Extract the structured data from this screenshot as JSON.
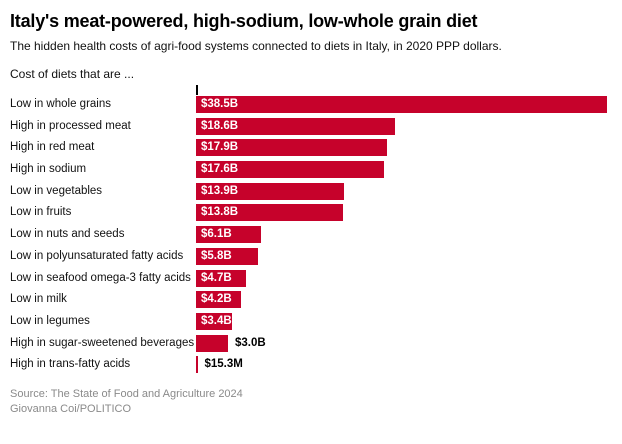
{
  "header": {
    "title": "Italy's meat-powered, high-sodium, low-whole grain diet",
    "subtitle": "The hidden health costs of agri-food systems connected to diets in Italy, in 2020 PPP dollars.",
    "prompt": "Cost of diets that are ..."
  },
  "colors": {
    "bar_red": "#c6022b",
    "value_inside_white": "#ffffff",
    "value_outside_black": "#000000",
    "axis_tick_black": "#000000",
    "source_gray": "#8a8a8a"
  },
  "chart_data": {
    "type": "bar",
    "orientation": "horizontal",
    "title": "Italy's meat-powered, high-sodium, low-whole grain diet",
    "subtitle": "The hidden health costs of agri-food systems connected to diets in Italy, in 2020 PPP dollars.",
    "unit": "2020 PPP dollars",
    "xlim_billions": [
      0,
      38.5
    ],
    "grid": false,
    "legend": false,
    "categories": [
      "Low in whole grains",
      "High in processed meat",
      "High in red meat",
      "High in sodium",
      "Low in vegetables",
      "Low in fruits",
      "Low in nuts and seeds",
      "Low in polyunsaturated fatty acids",
      "Low in seafood omega-3 fatty acids",
      "Low in milk",
      "Low in legumes",
      "High in sugar-sweetened beverages",
      "High in trans-fatty acids"
    ],
    "values_billions": [
      38.5,
      18.6,
      17.9,
      17.6,
      13.9,
      13.8,
      6.1,
      5.8,
      4.7,
      4.2,
      3.4,
      3.0,
      0.0153
    ],
    "value_labels": [
      "$38.5B",
      "$18.6B",
      "$17.9B",
      "$17.6B",
      "$13.9B",
      "$13.8B",
      "$6.1B",
      "$5.8B",
      "$4.7B",
      "$4.2B",
      "$3.4B",
      "$3.0B",
      "$15.3M"
    ],
    "label_positions": [
      "inside",
      "inside",
      "inside",
      "inside",
      "inside",
      "inside",
      "inside",
      "inside",
      "inside",
      "inside",
      "inside",
      "outside",
      "outside"
    ]
  },
  "footer": {
    "source": "Source: The State of Food and Agriculture 2024",
    "credit": "Giovanna Coi/POLITICO"
  }
}
